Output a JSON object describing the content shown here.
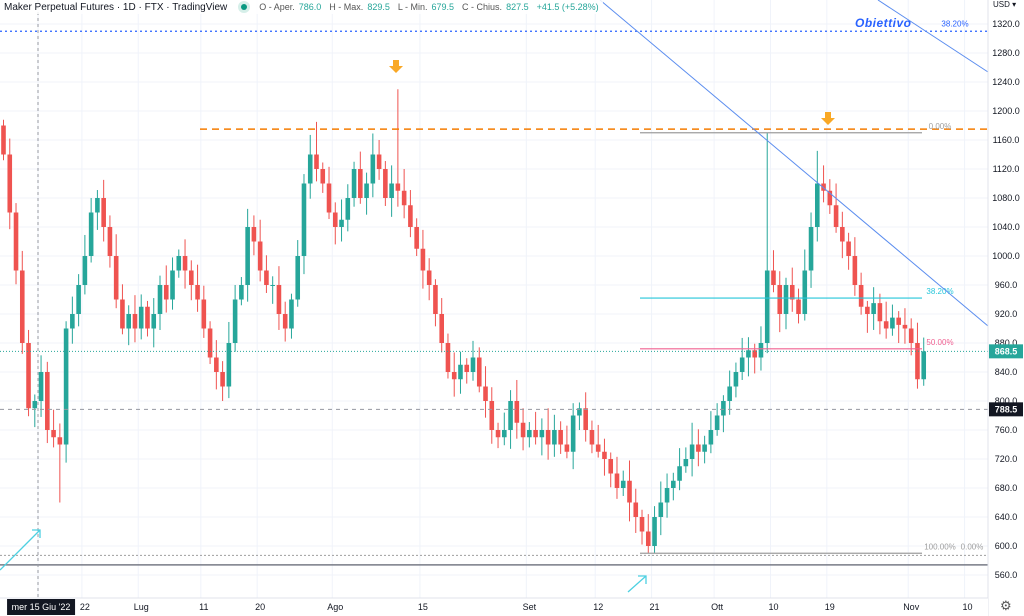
{
  "header": {
    "title": "Maker Perpetual Futures · 1D · FTX · TradingView",
    "open_label": "O - Aper.",
    "open": "786.0",
    "high_label": "H - Max.",
    "high": "829.5",
    "low_label": "L - Min.",
    "low": "679.5",
    "close_label": "C - Chius.",
    "close": "827.5",
    "change": "+41.5 (+5.28%)"
  },
  "currency": "USD ▾",
  "annotation": "Obiettivo",
  "colors": {
    "up": "#26a69a",
    "down": "#ef5350",
    "trend": "#5b8def",
    "orange": "#f57c00"
  },
  "chart_data": {
    "type": "candlestick",
    "title": "Maker Perpetual Futures · 1D · FTX",
    "start_date": "2022-06-09",
    "ylim": [
      545,
      1335
    ],
    "yticks": [
      "1320.0",
      "1280.0",
      "1240.0",
      "1200.0",
      "1160.0",
      "1120.0",
      "1080.0",
      "1040.0",
      "1000.0",
      "960.0",
      "920.0",
      "880.0",
      "840.0",
      "800.0",
      "760.0",
      "720.0",
      "680.0",
      "640.0",
      "600.0",
      "560.0"
    ],
    "xticks": [
      {
        "label": "mer 15 Giu '22",
        "day": 6,
        "highlight": true
      },
      {
        "label": "22",
        "day": 13
      },
      {
        "label": "Lug",
        "day": 22
      },
      {
        "label": "11",
        "day": 32
      },
      {
        "label": "20",
        "day": 41
      },
      {
        "label": "Ago",
        "day": 53
      },
      {
        "label": "15",
        "day": 67
      },
      {
        "label": "Set",
        "day": 84
      },
      {
        "label": "12",
        "day": 95
      },
      {
        "label": "21",
        "day": 104
      },
      {
        "label": "Ott",
        "day": 114
      },
      {
        "label": "10",
        "day": 123
      },
      {
        "label": "19",
        "day": 132
      },
      {
        "label": "Nov",
        "day": 145
      },
      {
        "label": "10",
        "day": 154
      }
    ],
    "closes": [
      1140,
      1060,
      980,
      880,
      790,
      800,
      840,
      760,
      750,
      740,
      900,
      920,
      960,
      1000,
      1060,
      1080,
      1040,
      1000,
      940,
      900,
      920,
      900,
      930,
      900,
      920,
      960,
      940,
      980,
      1000,
      980,
      960,
      940,
      900,
      860,
      840,
      820,
      880,
      940,
      960,
      1040,
      1020,
      980,
      960,
      960,
      920,
      900,
      940,
      1000,
      1100,
      1140,
      1120,
      1100,
      1060,
      1040,
      1050,
      1080,
      1120,
      1080,
      1100,
      1140,
      1120,
      1080,
      1100,
      1090,
      1070,
      1040,
      1010,
      980,
      960,
      920,
      880,
      840,
      830,
      850,
      840,
      860,
      820,
      800,
      760,
      750,
      760,
      800,
      770,
      750,
      760,
      750,
      760,
      740,
      760,
      740,
      730,
      780,
      790,
      760,
      740,
      730,
      720,
      700,
      680,
      690,
      660,
      640,
      620,
      600,
      640,
      660,
      680,
      690,
      710,
      720,
      740,
      730,
      740,
      760,
      780,
      800,
      820,
      840,
      860,
      870,
      860,
      880,
      980,
      960,
      920,
      960,
      940,
      920,
      980,
      1040,
      1100,
      1090,
      1070,
      1040,
      1020,
      1000,
      960,
      930,
      920,
      935,
      910,
      900,
      915,
      905,
      900,
      880,
      830,
      868.5
    ],
    "first_open": 1180,
    "wick_extremes": [
      {
        "day": 63,
        "high": 1230
      },
      {
        "day": 122,
        "high": 1170
      },
      {
        "day": 9,
        "low": 660
      },
      {
        "day": 103,
        "low": 590
      },
      {
        "day": 130,
        "high": 1145
      },
      {
        "day": 50,
        "high": 1185
      }
    ],
    "levels": {
      "last_price": "868.5",
      "prev_level": "788.5",
      "resistance": 1175,
      "fib": [
        {
          "label": "0.00%",
          "price": 1170,
          "color": "#9e9e9e"
        },
        {
          "label": "38.20%",
          "price": 942,
          "color": "#26c6da"
        },
        {
          "label": "50.00%",
          "price": 872,
          "color": "#f06292"
        },
        {
          "label": "100.00%",
          "price": 590,
          "color": "#9e9e9e"
        }
      ],
      "far_fib": [
        {
          "label": "38.20%",
          "price": 1310,
          "color": "#2962ff"
        },
        {
          "label": "0.00%",
          "price": 590,
          "color": "#9e9e9e"
        }
      ]
    }
  }
}
